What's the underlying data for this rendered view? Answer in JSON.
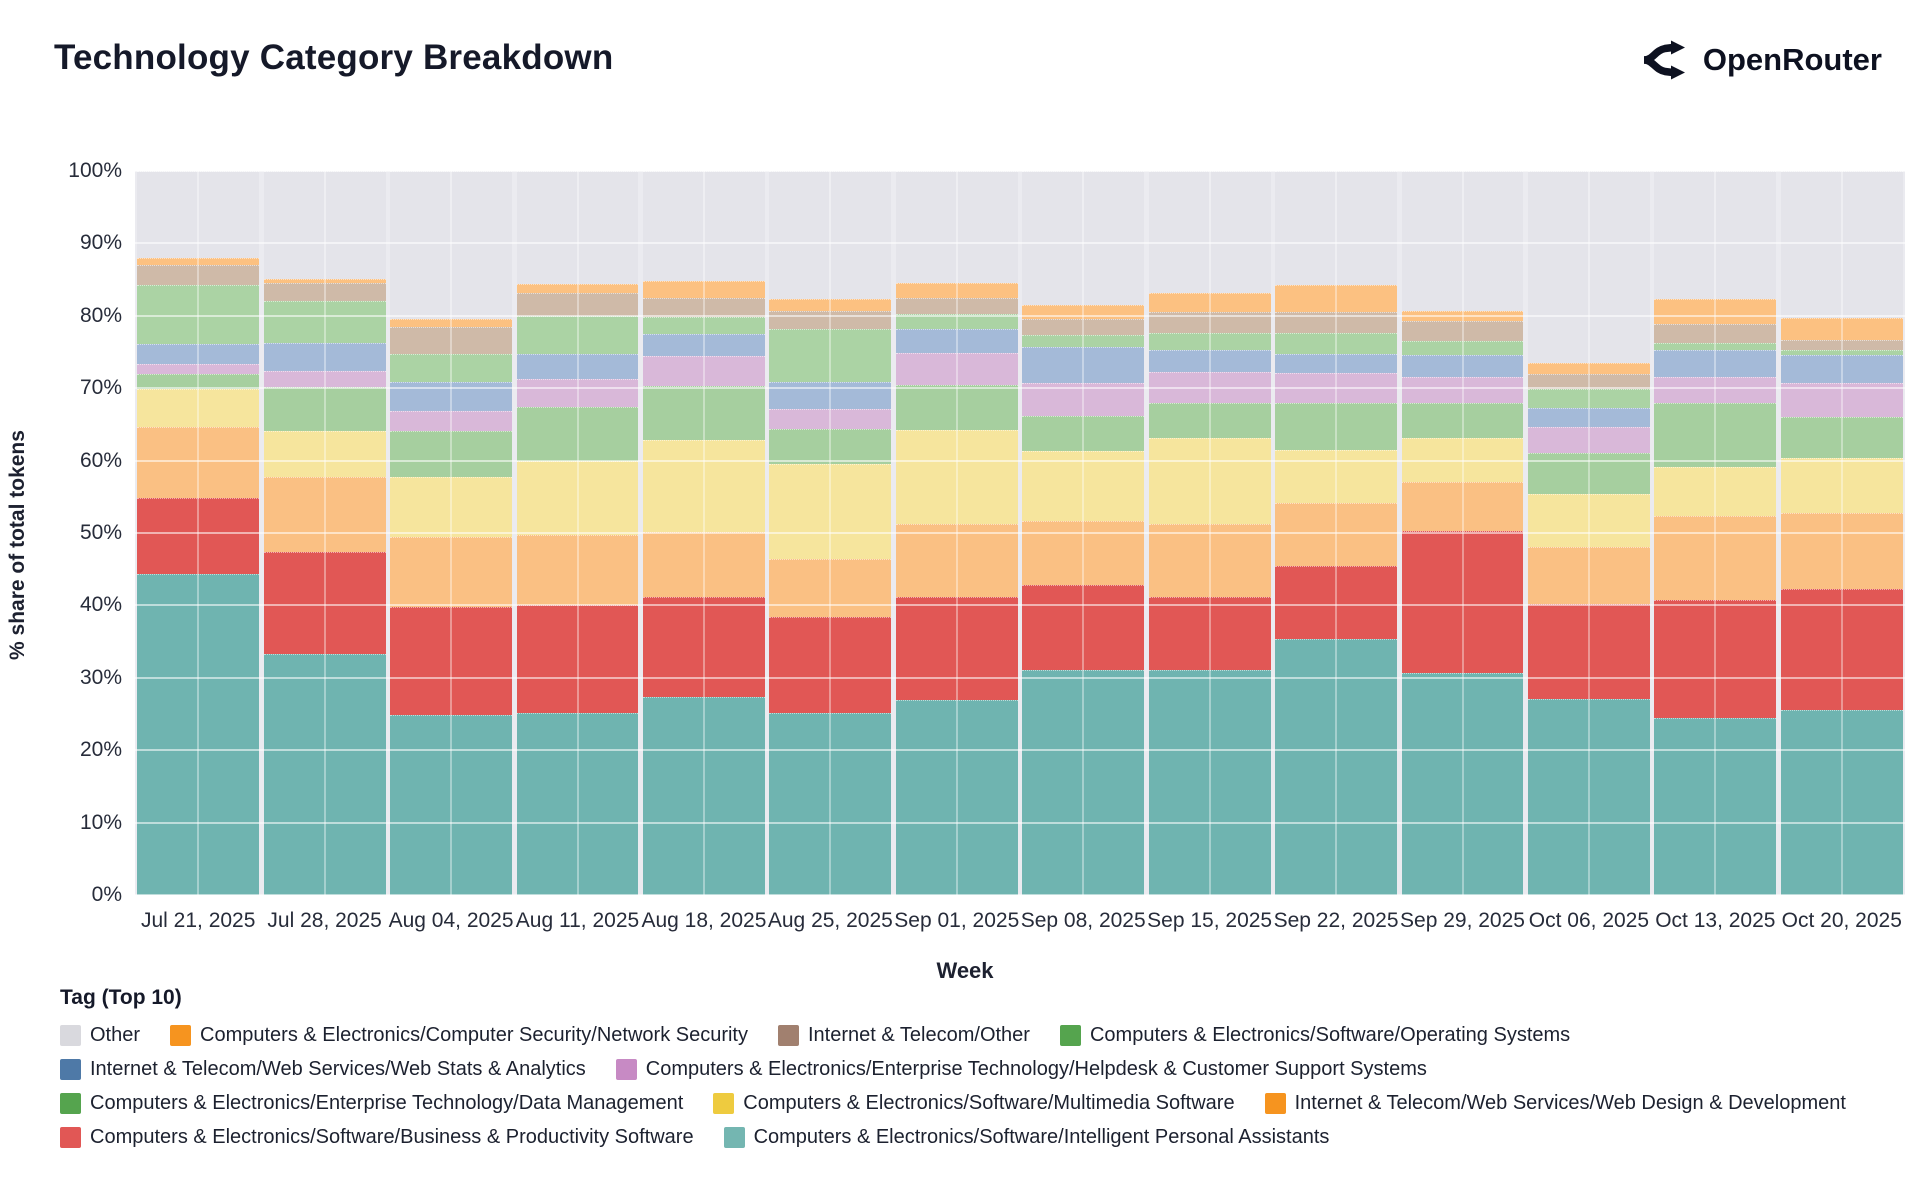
{
  "header": {
    "title": "Technology Category Breakdown",
    "brand": "OpenRouter"
  },
  "axes": {
    "xlabel": "Week",
    "ylabel": "% share of total tokens"
  },
  "legend": {
    "title": "Tag (Top 10)",
    "rows": [
      [
        "Other",
        "Computers & Electronics/Computer Security/Network Security",
        "Internet & Telecom/Other",
        "Computers & Electronics/Software/Operating Systems"
      ],
      [
        "Internet & Telecom/Web Services/Web Stats & Analytics",
        "Computers & Electronics/Enterprise Technology/Helpdesk & Customer Support Systems"
      ],
      [
        "Computers & Electronics/Enterprise Technology/Data Management",
        "Computers & Electronics/Software/Multimedia Software",
        "Internet & Telecom/Web Services/Web Design & Development"
      ],
      [
        "Computers & Electronics/Software/Business & Productivity Software",
        "Computers & Electronics/Software/Intelligent Personal Assistants"
      ]
    ]
  },
  "chart_data": {
    "type": "bar",
    "stacked": true,
    "units": "percent of total tokens",
    "title": "Technology Category Breakdown",
    "xlabel": "Week",
    "ylabel": "% share of total tokens",
    "ylim": [
      0,
      100
    ],
    "ytick_step": 10,
    "grid": true,
    "legend_position": "bottom",
    "categories": [
      "Jul 21, 2025",
      "Jul 28, 2025",
      "Aug 04, 2025",
      "Aug 11, 2025",
      "Aug 18, 2025",
      "Aug 25, 2025",
      "Sep 01, 2025",
      "Sep 08, 2025",
      "Sep 15, 2025",
      "Sep 22, 2025",
      "Sep 29, 2025",
      "Oct 06, 2025",
      "Oct 13, 2025",
      "Oct 20, 2025"
    ],
    "series": [
      {
        "key": "intelligent-personal-assistants",
        "name": "Computers & Electronics/Software/Intelligent Personal Assistants",
        "bar_color": "#6fb4b0",
        "legend_color": "#74b6b1",
        "pattern": "none",
        "values": [
          44.4,
          33.3,
          24.8,
          25.1,
          27.4,
          25.1,
          26.9,
          31.1,
          31.1,
          35.4,
          30.7,
          27.1,
          24.4,
          25.6
        ]
      },
      {
        "key": "business-productivity-software",
        "name": "Computers & Electronics/Software/Business & Productivity Software",
        "bar_color": "#e15755",
        "legend_color": "#e15755",
        "pattern": "none",
        "values": [
          10.5,
          14.1,
          15.0,
          15.0,
          13.8,
          13.3,
          14.2,
          11.7,
          10.1,
          10.1,
          19.6,
          13.1,
          16.3,
          16.7
        ]
      },
      {
        "key": "web-design-development",
        "name": "Internet & Telecom/Web Services/Web Design & Development",
        "bar_color": "#fac083",
        "legend_color": "#f6941f",
        "pattern": "none",
        "values": [
          9.7,
          10.4,
          9.6,
          9.6,
          8.9,
          8.0,
          10.2,
          8.8,
          10.1,
          8.7,
          6.7,
          7.9,
          11.7,
          10.4
        ]
      },
      {
        "key": "multimedia-software",
        "name": "Computers & Electronics/Software/Multimedia Software",
        "bar_color": "#f6e59d",
        "legend_color": "#eecb3f",
        "pattern": "none",
        "values": [
          5.3,
          6.3,
          8.3,
          10.3,
          12.7,
          13.1,
          12.9,
          9.7,
          11.8,
          7.2,
          6.1,
          7.3,
          6.7,
          7.7
        ]
      },
      {
        "key": "data-management",
        "name": "Computers & Electronics/Enterprise Technology/Data Management",
        "bar_color": "#a6cf9f",
        "legend_color": "#55a44e",
        "pattern": "none",
        "values": [
          2.1,
          6.0,
          6.4,
          7.4,
          7.5,
          4.9,
          6.3,
          4.8,
          4.8,
          6.5,
          4.8,
          5.7,
          8.8,
          5.6
        ]
      },
      {
        "key": "helpdesk-customer-support",
        "name": "Computers & Electronics/Enterprise Technology/Helpdesk & Customer Support Systems",
        "bar_color": "#d9b8d9",
        "legend_color": "#c78ac4",
        "pattern": "yellow-dots",
        "values": [
          1.4,
          2.3,
          2.7,
          3.9,
          4.2,
          2.7,
          4.3,
          4.6,
          4.4,
          4.2,
          3.6,
          3.5,
          3.7,
          4.7
        ]
      },
      {
        "key": "web-stats-analytics",
        "name": "Internet & Telecom/Web Services/Web Stats & Analytics",
        "bar_color": "#a4bad8",
        "legend_color": "#4e79a7",
        "pattern": "none",
        "values": [
          2.7,
          3.9,
          4.0,
          3.4,
          3.0,
          3.7,
          3.4,
          5.0,
          3.0,
          2.6,
          3.1,
          2.7,
          3.7,
          3.9
        ]
      },
      {
        "key": "operating-systems",
        "name": "Computers & Electronics/Software/Operating Systems",
        "bar_color": "#abd3a4",
        "legend_color": "#55a44e",
        "pattern": "none",
        "values": [
          8.2,
          5.7,
          3.9,
          5.3,
          2.3,
          7.4,
          2.1,
          1.7,
          2.3,
          2.9,
          1.9,
          2.6,
          1.0,
          0.7
        ]
      },
      {
        "key": "internet-telecom-other",
        "name": "Internet & Telecom/Other",
        "bar_color": "#cfbaa8",
        "legend_color": "#a1806f",
        "pattern": "white-dots",
        "values": [
          2.7,
          2.5,
          3.8,
          3.2,
          2.7,
          2.5,
          2.1,
          2.1,
          2.9,
          2.9,
          2.8,
          2.0,
          2.6,
          1.3
        ]
      },
      {
        "key": "network-security",
        "name": "Computers & Electronics/Computer Security/Network Security",
        "bar_color": "#fcc181",
        "legend_color": "#f6941f",
        "pattern": "none",
        "values": [
          1.0,
          0.6,
          1.1,
          1.2,
          2.3,
          1.6,
          2.1,
          2.0,
          2.6,
          3.8,
          1.3,
          1.6,
          3.4,
          3.1
        ]
      },
      {
        "key": "other",
        "name": "Other",
        "bar_color": "#e4e4ea",
        "legend_color": "#d9d9de",
        "pattern": "none",
        "values": [
          12.0,
          14.9,
          20.4,
          15.6,
          15.2,
          17.7,
          15.5,
          18.5,
          16.9,
          15.7,
          19.4,
          26.5,
          17.7,
          20.3
        ]
      }
    ]
  }
}
